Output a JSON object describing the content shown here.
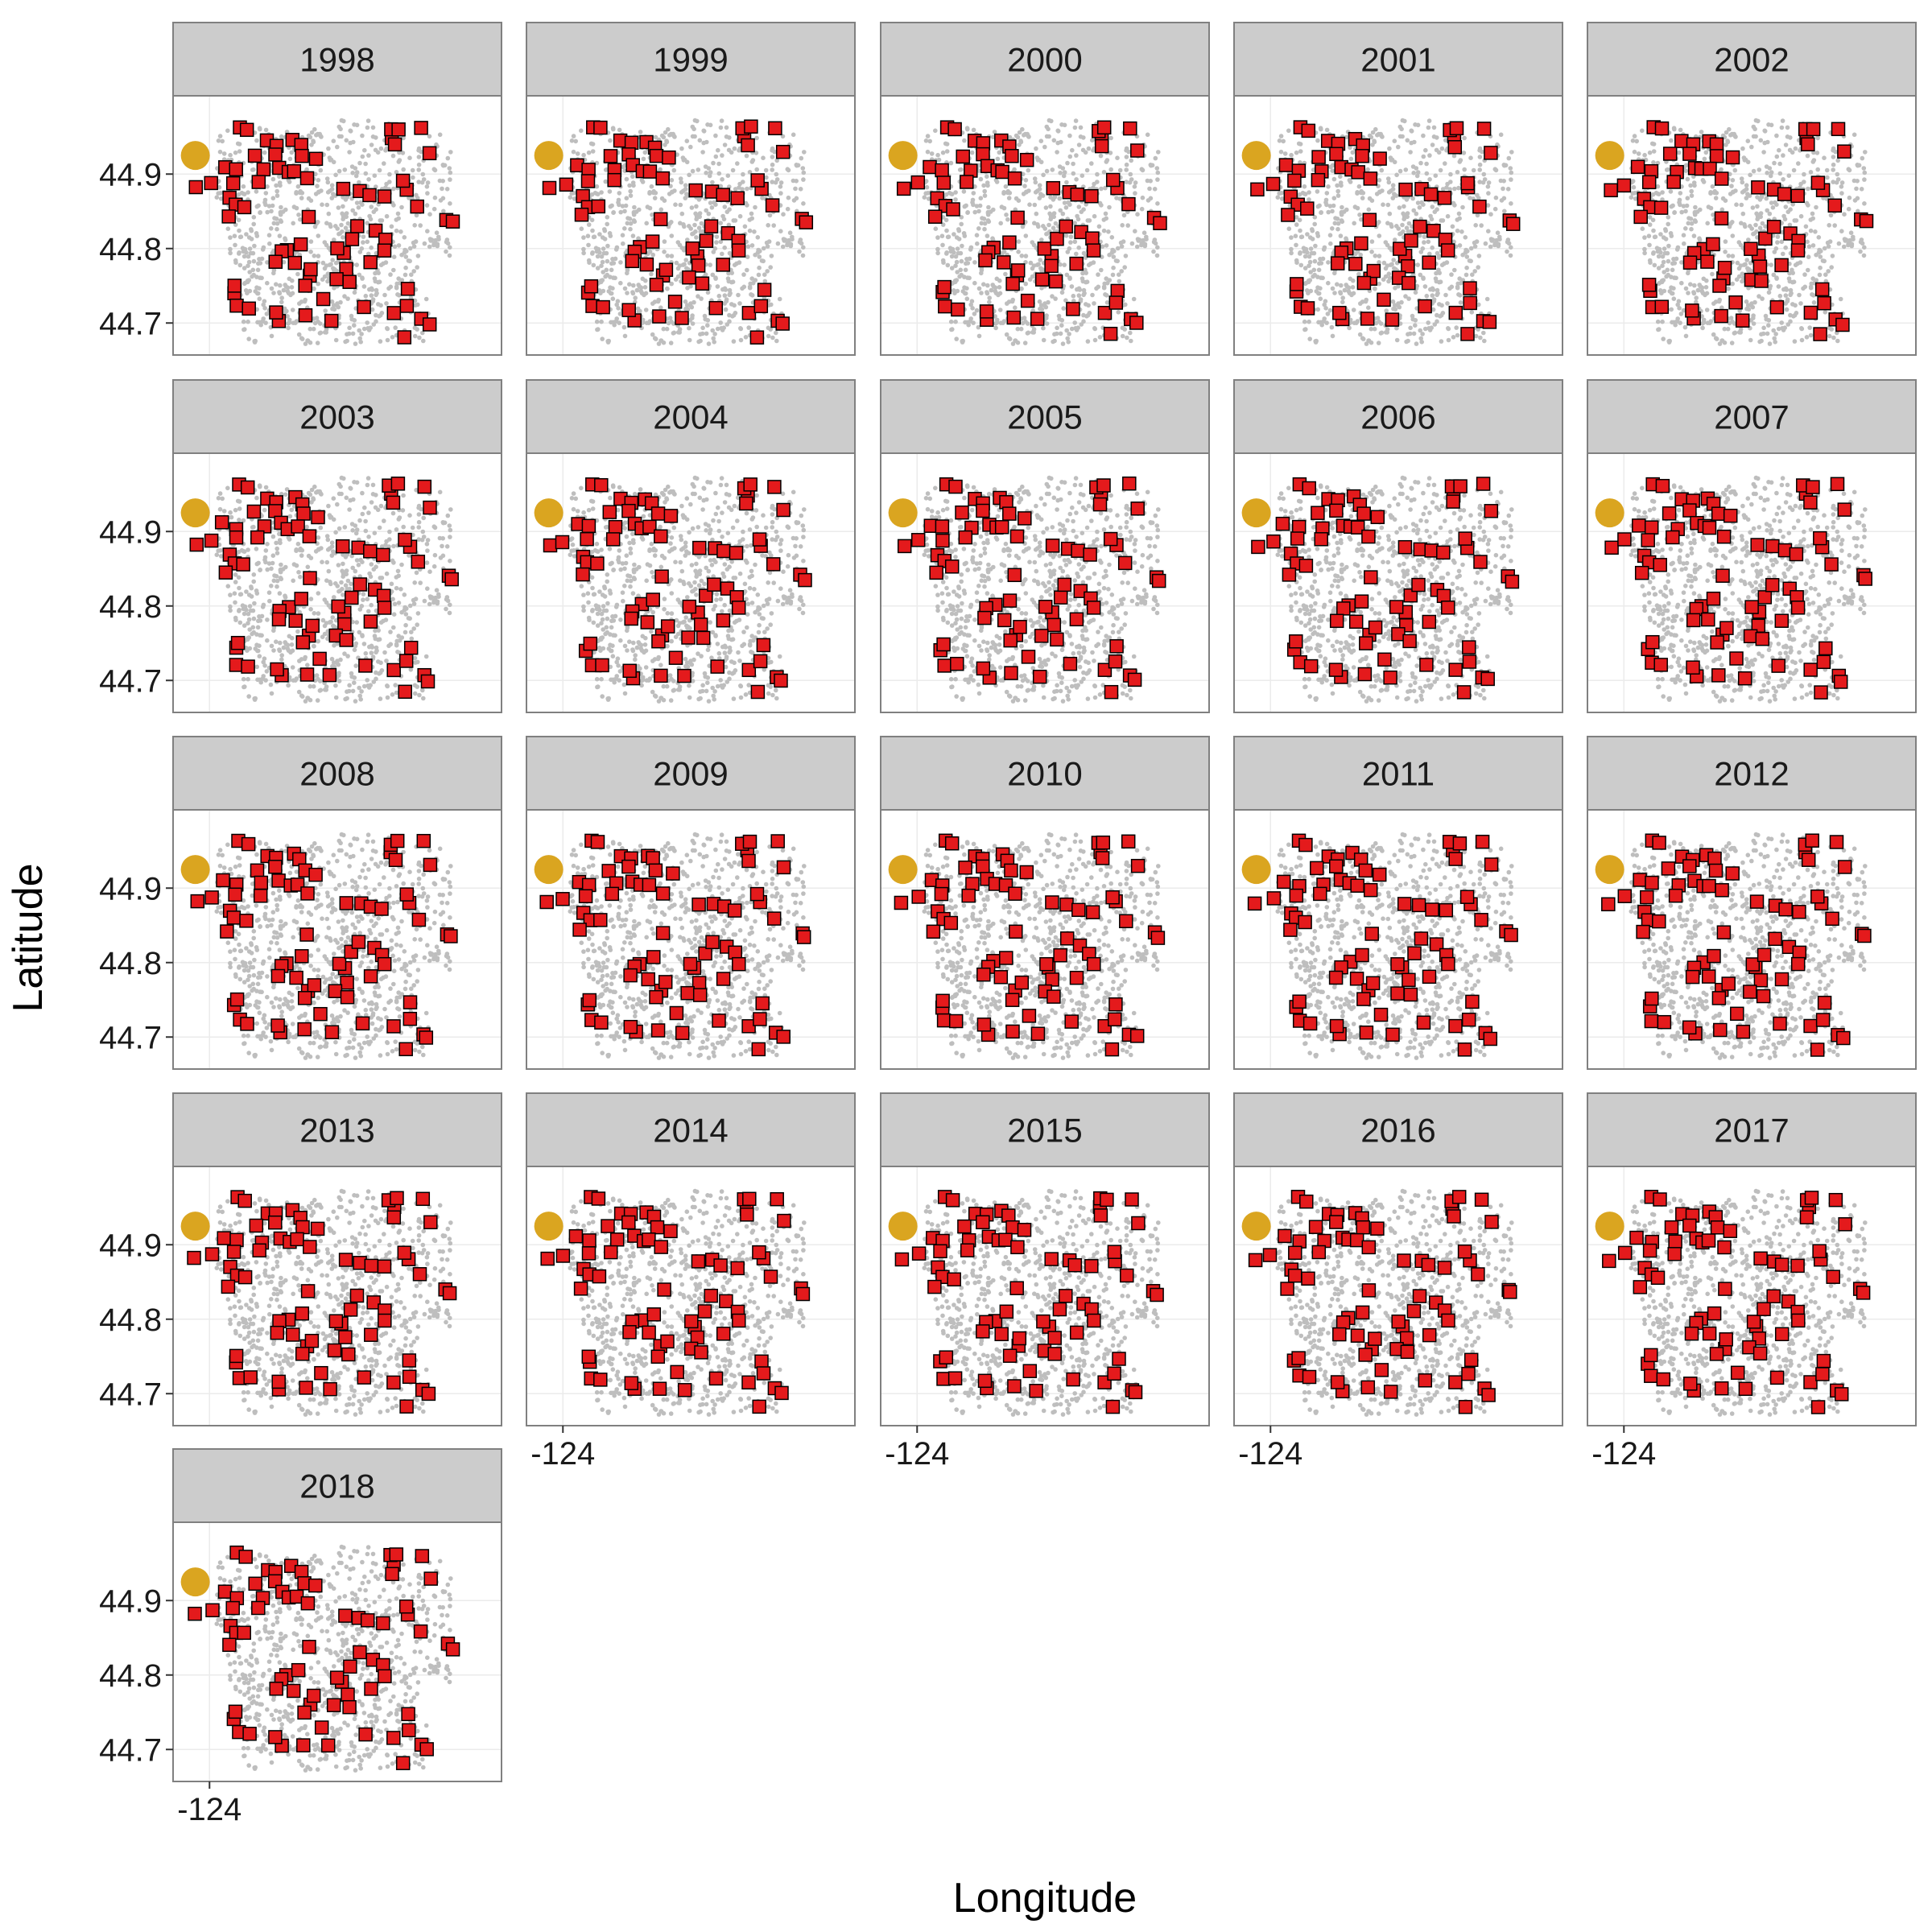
{
  "chart_data": {
    "type": "scatter",
    "layout": "facet_wrap",
    "ncol": 5,
    "xlabel": "Longitude",
    "ylabel": "Latitude",
    "xlim": [
      -124.04,
      -123.6
    ],
    "ylim": [
      44.67,
      44.99
    ],
    "x_ticks": [
      -124
    ],
    "x_tick_labels": [
      "-124"
    ],
    "y_ticks": [
      44.7,
      44.8,
      44.9
    ],
    "y_tick_labels": [
      "44.7",
      "44.8",
      "44.9"
    ],
    "grid": true,
    "legend": "none",
    "panels": [
      "1998",
      "1999",
      "2000",
      "2001",
      "2002",
      "2003",
      "2004",
      "2005",
      "2006",
      "2007",
      "2008",
      "2009",
      "2010",
      "2011",
      "2012",
      "2013",
      "2014",
      "2015",
      "2016",
      "2017",
      "2018"
    ],
    "series": [
      {
        "name": "",
        "role": "background points",
        "marker": "small circle",
        "color": "#bebebe",
        "count": 900
      },
      {
        "name": "",
        "role": "reference location",
        "marker": "large circle",
        "color": "#daa520",
        "points": [
          [
            -124.02,
            44.925
          ]
        ]
      },
      {
        "name": "",
        "role": "sampled sites",
        "marker": "square",
        "fill": "#e41a1c",
        "stroke": "#000000",
        "points": [
          [
            -124.02,
            44.88
          ],
          [
            -123.998,
            44.887
          ],
          [
            -123.98,
            44.91
          ],
          [
            -123.962,
            44.905
          ],
          [
            -123.965,
            44.89
          ],
          [
            -123.972,
            44.868
          ],
          [
            -123.963,
            44.858
          ],
          [
            -123.95,
            44.855
          ],
          [
            -123.975,
            44.843
          ],
          [
            -123.96,
            44.963
          ],
          [
            -123.948,
            44.96
          ],
          [
            -123.92,
            44.943
          ],
          [
            -123.905,
            44.94
          ],
          [
            -123.882,
            44.945
          ],
          [
            -123.935,
            44.925
          ],
          [
            -123.91,
            44.928
          ],
          [
            -123.925,
            44.905
          ],
          [
            -123.93,
            44.89
          ],
          [
            -123.9,
            44.91
          ],
          [
            -123.888,
            44.905
          ],
          [
            -123.872,
            44.938
          ],
          [
            -123.868,
            44.925
          ],
          [
            -123.878,
            44.905
          ],
          [
            -123.86,
            44.895
          ],
          [
            -123.848,
            44.92
          ],
          [
            -123.86,
            44.84
          ],
          [
            -123.89,
            44.8
          ],
          [
            -123.9,
            44.795
          ],
          [
            -123.872,
            44.808
          ],
          [
            -123.88,
            44.78
          ],
          [
            -123.905,
            44.782
          ],
          [
            -123.86,
            44.762
          ],
          [
            -123.855,
            44.772
          ],
          [
            -123.868,
            44.752
          ],
          [
            -123.812,
            44.792
          ],
          [
            -123.82,
            44.798
          ],
          [
            -123.8,
            44.812
          ],
          [
            -123.808,
            44.775
          ],
          [
            -123.79,
            44.83
          ],
          [
            -123.768,
            44.822
          ],
          [
            -123.755,
            44.812
          ],
          [
            -123.752,
            44.798
          ],
          [
            -123.775,
            44.78
          ],
          [
            -123.822,
            44.76
          ],
          [
            -123.805,
            44.755
          ],
          [
            -123.842,
            44.73
          ],
          [
            -123.965,
            44.742
          ],
          [
            -123.962,
            44.75
          ],
          [
            -123.96,
            44.722
          ],
          [
            -123.945,
            44.72
          ],
          [
            -123.9,
            44.705
          ],
          [
            -123.905,
            44.715
          ],
          [
            -123.865,
            44.708
          ],
          [
            -123.83,
            44.705
          ],
          [
            -123.782,
            44.72
          ],
          [
            -123.738,
            44.715
          ],
          [
            -123.718,
            44.745
          ],
          [
            -123.72,
            44.725
          ],
          [
            -123.7,
            44.705
          ],
          [
            -123.692,
            44.7
          ],
          [
            -123.725,
            44.683
          ],
          [
            -123.81,
            44.88
          ],
          [
            -123.788,
            44.878
          ],
          [
            -123.775,
            44.873
          ],
          [
            -123.755,
            44.87
          ],
          [
            -123.742,
            44.95
          ],
          [
            -123.745,
            44.96
          ],
          [
            -123.735,
            44.962
          ],
          [
            -123.74,
            44.938
          ],
          [
            -123.72,
            44.88
          ],
          [
            -123.725,
            44.89
          ],
          [
            -123.7,
            44.962
          ],
          [
            -123.69,
            44.93
          ],
          [
            -123.705,
            44.858
          ],
          [
            -123.665,
            44.84
          ],
          [
            -123.66,
            44.835
          ]
        ]
      }
    ]
  }
}
